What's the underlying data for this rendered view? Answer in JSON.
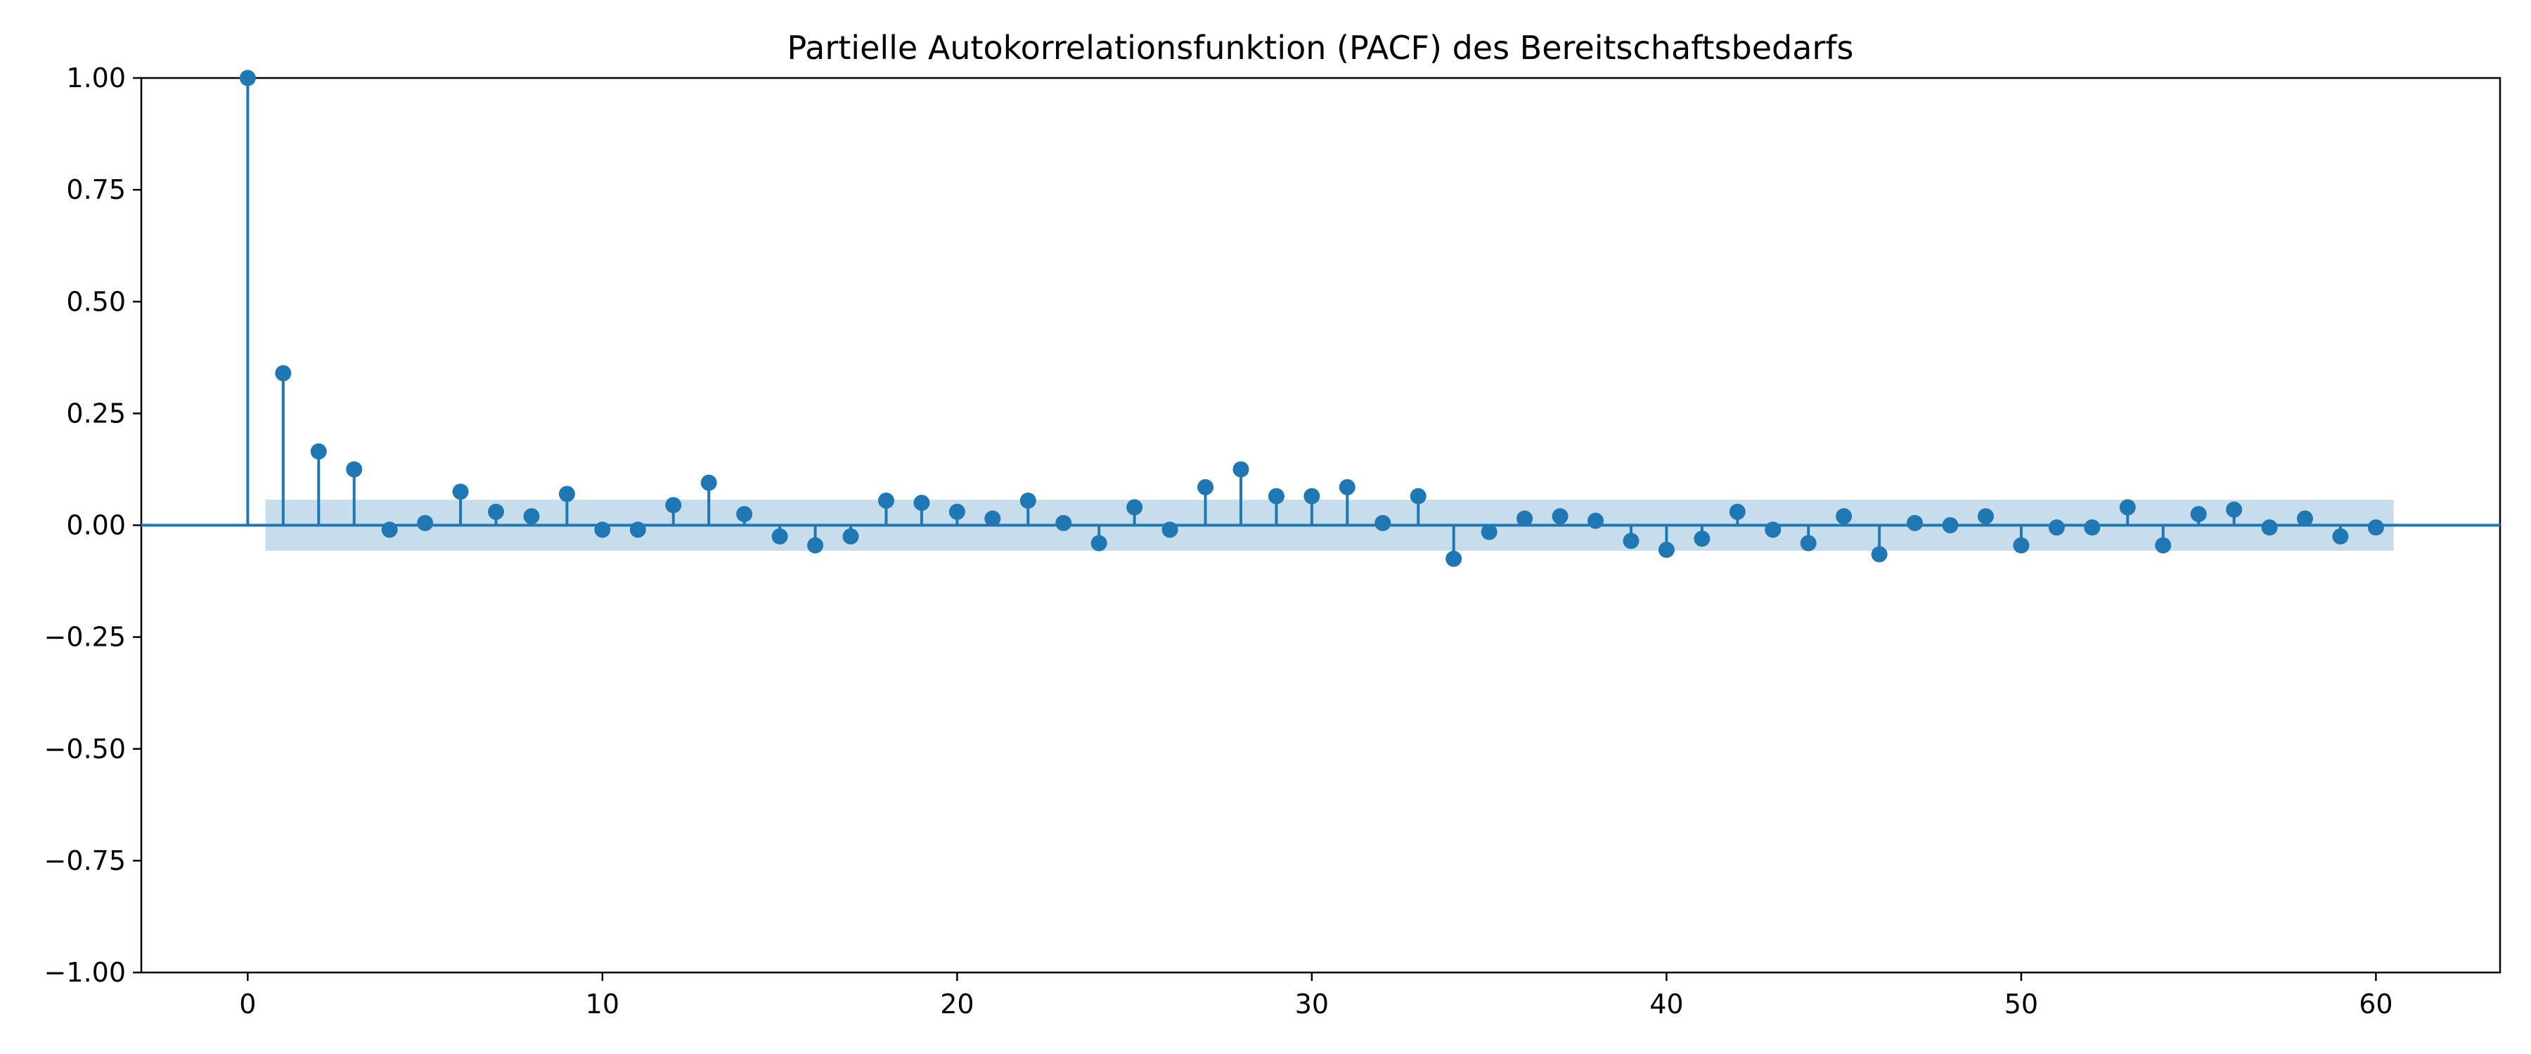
{
  "chart_data": {
    "type": "stem",
    "title": "Partielle Autokorrelationsfunktion (PACF) des Bereitschaftsbedarfs",
    "xlabel": "",
    "ylabel": "",
    "xlim": [
      -3,
      63.5
    ],
    "ylim": [
      -1.0,
      1.0
    ],
    "x_ticks": [
      0,
      10,
      20,
      30,
      40,
      50,
      60
    ],
    "x_tick_labels": [
      "0",
      "10",
      "20",
      "30",
      "40",
      "50",
      "60"
    ],
    "y_ticks": [
      1.0,
      0.75,
      0.5,
      0.25,
      0.0,
      -0.25,
      -0.5,
      -0.75,
      -1.0
    ],
    "y_tick_labels": [
      "1.00",
      "0.75",
      "0.50",
      "0.25",
      "0.00",
      "−0.25",
      "−0.50",
      "−0.75",
      "−1.00"
    ],
    "grid": false,
    "confidence_band": {
      "lower": -0.057,
      "upper": 0.057,
      "x_range": [
        0.5,
        60.5
      ]
    },
    "lags": [
      0,
      1,
      2,
      3,
      4,
      5,
      6,
      7,
      8,
      9,
      10,
      11,
      12,
      13,
      14,
      15,
      16,
      17,
      18,
      19,
      20,
      21,
      22,
      23,
      24,
      25,
      26,
      27,
      28,
      29,
      30,
      31,
      32,
      33,
      34,
      35,
      36,
      37,
      38,
      39,
      40,
      41,
      42,
      43,
      44,
      45,
      46,
      47,
      48,
      49,
      50,
      51,
      52,
      53,
      54,
      55,
      56,
      57,
      58,
      59,
      60
    ],
    "values": [
      1.0,
      0.34,
      0.165,
      0.125,
      -0.01,
      0.005,
      0.075,
      0.03,
      0.02,
      0.07,
      -0.01,
      -0.01,
      0.045,
      0.095,
      0.025,
      -0.025,
      -0.045,
      -0.025,
      0.055,
      0.05,
      0.03,
      0.015,
      0.055,
      0.005,
      -0.04,
      0.04,
      -0.01,
      0.085,
      0.125,
      0.065,
      0.065,
      0.085,
      0.005,
      0.065,
      -0.075,
      -0.015,
      0.015,
      0.02,
      0.01,
      -0.035,
      -0.055,
      -0.03,
      0.03,
      -0.01,
      -0.04,
      0.02,
      -0.065,
      0.005,
      0.0,
      0.02,
      -0.045,
      -0.005,
      -0.005,
      0.04,
      -0.045,
      0.025,
      0.035,
      -0.005,
      0.015,
      -0.025,
      -0.005
    ],
    "colors": {
      "stem": "#1f77b4",
      "band": "#1f77b4",
      "axis": "#000000"
    }
  }
}
